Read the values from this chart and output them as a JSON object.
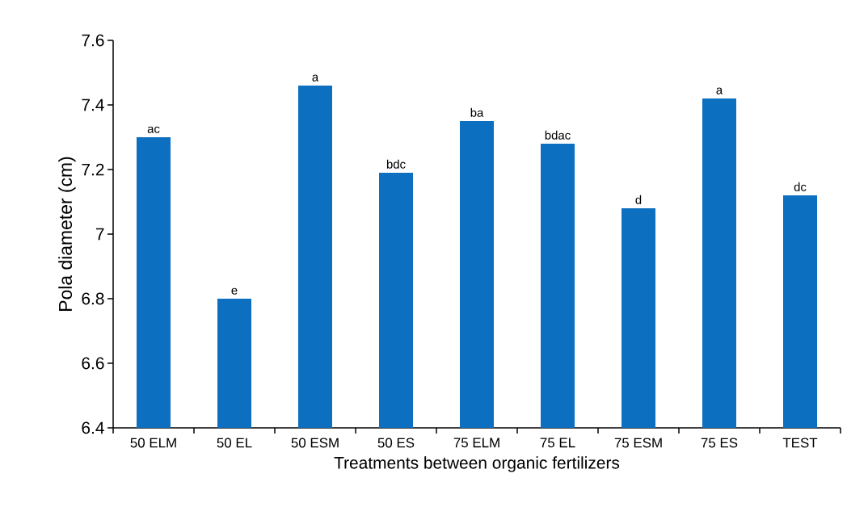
{
  "chart_data": {
    "type": "bar",
    "xlabel": "Treatments between organic fertilizers",
    "ylabel": "Pola diameter (cm)",
    "categories": [
      "50 ELM",
      "50 EL",
      "50 ESM",
      "50 ES",
      "75 ELM",
      "75 EL",
      "75 ESM",
      "75 ES",
      "TEST"
    ],
    "values": [
      7.3,
      6.8,
      7.46,
      7.19,
      7.35,
      7.28,
      7.08,
      7.42,
      7.12
    ],
    "color": "#0d6fc0",
    "ylim": [
      6.4,
      7.6
    ],
    "yticks": [
      6.4,
      6.6,
      6.8,
      7,
      7.2,
      7.4,
      7.6
    ],
    "annotations": [
      {
        "text": "ac",
        "x": "50 ELM",
        "y": 7.3
      },
      {
        "text": "e",
        "x": "50 EL",
        "y": 6.8
      },
      {
        "text": "a",
        "x": "50 ESM",
        "y": 7.46
      },
      {
        "text": "bdc",
        "x": "50 ES",
        "y": 7.19
      },
      {
        "text": "ba",
        "x": "75 ELM",
        "y": 7.35
      },
      {
        "text": "bdac",
        "x": "75 EL",
        "y": 7.28
      },
      {
        "text": "d",
        "x": "75 ESM",
        "y": 7.08
      },
      {
        "text": "a",
        "x": "75 ES",
        "y": 7.42
      },
      {
        "text": "dc",
        "x": "TEST",
        "y": 7.12
      }
    ]
  }
}
